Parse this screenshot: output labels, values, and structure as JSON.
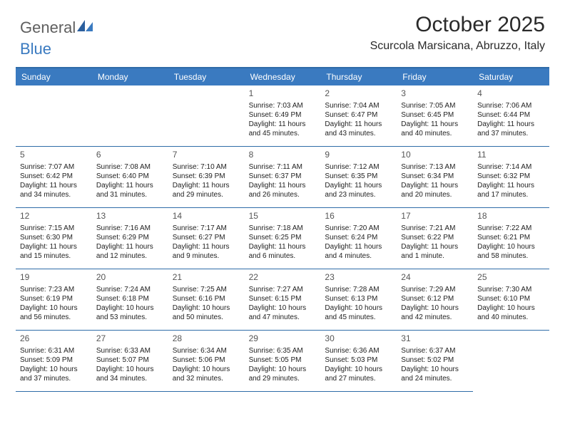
{
  "logo": {
    "text1": "General",
    "text2": "Blue"
  },
  "title": "October 2025",
  "location": "Scurcola Marsicana, Abruzzo, Italy",
  "colors": {
    "header_bg": "#3a7ac0",
    "header_text": "#ffffff",
    "border": "#2f6ca8",
    "logo_gray": "#5f5f5f",
    "logo_blue": "#3a7ac0",
    "body_text": "#222222",
    "daynum_text": "#555555",
    "page_bg": "#ffffff"
  },
  "typography": {
    "title_fontsize": 30,
    "location_fontsize": 16,
    "weekday_fontsize": 12,
    "daynum_fontsize": 12,
    "info_fontsize": 10,
    "font_family": "Arial"
  },
  "layout": {
    "columns": 7,
    "rows": 5,
    "cell_min_height": 86
  },
  "weekdays": [
    "Sunday",
    "Monday",
    "Tuesday",
    "Wednesday",
    "Thursday",
    "Friday",
    "Saturday"
  ],
  "leading_blanks": 3,
  "days": [
    {
      "n": "1",
      "sr": "Sunrise: 7:03 AM",
      "ss": "Sunset: 6:49 PM",
      "d1": "Daylight: 11 hours",
      "d2": "and 45 minutes."
    },
    {
      "n": "2",
      "sr": "Sunrise: 7:04 AM",
      "ss": "Sunset: 6:47 PM",
      "d1": "Daylight: 11 hours",
      "d2": "and 43 minutes."
    },
    {
      "n": "3",
      "sr": "Sunrise: 7:05 AM",
      "ss": "Sunset: 6:45 PM",
      "d1": "Daylight: 11 hours",
      "d2": "and 40 minutes."
    },
    {
      "n": "4",
      "sr": "Sunrise: 7:06 AM",
      "ss": "Sunset: 6:44 PM",
      "d1": "Daylight: 11 hours",
      "d2": "and 37 minutes."
    },
    {
      "n": "5",
      "sr": "Sunrise: 7:07 AM",
      "ss": "Sunset: 6:42 PM",
      "d1": "Daylight: 11 hours",
      "d2": "and 34 minutes."
    },
    {
      "n": "6",
      "sr": "Sunrise: 7:08 AM",
      "ss": "Sunset: 6:40 PM",
      "d1": "Daylight: 11 hours",
      "d2": "and 31 minutes."
    },
    {
      "n": "7",
      "sr": "Sunrise: 7:10 AM",
      "ss": "Sunset: 6:39 PM",
      "d1": "Daylight: 11 hours",
      "d2": "and 29 minutes."
    },
    {
      "n": "8",
      "sr": "Sunrise: 7:11 AM",
      "ss": "Sunset: 6:37 PM",
      "d1": "Daylight: 11 hours",
      "d2": "and 26 minutes."
    },
    {
      "n": "9",
      "sr": "Sunrise: 7:12 AM",
      "ss": "Sunset: 6:35 PM",
      "d1": "Daylight: 11 hours",
      "d2": "and 23 minutes."
    },
    {
      "n": "10",
      "sr": "Sunrise: 7:13 AM",
      "ss": "Sunset: 6:34 PM",
      "d1": "Daylight: 11 hours",
      "d2": "and 20 minutes."
    },
    {
      "n": "11",
      "sr": "Sunrise: 7:14 AM",
      "ss": "Sunset: 6:32 PM",
      "d1": "Daylight: 11 hours",
      "d2": "and 17 minutes."
    },
    {
      "n": "12",
      "sr": "Sunrise: 7:15 AM",
      "ss": "Sunset: 6:30 PM",
      "d1": "Daylight: 11 hours",
      "d2": "and 15 minutes."
    },
    {
      "n": "13",
      "sr": "Sunrise: 7:16 AM",
      "ss": "Sunset: 6:29 PM",
      "d1": "Daylight: 11 hours",
      "d2": "and 12 minutes."
    },
    {
      "n": "14",
      "sr": "Sunrise: 7:17 AM",
      "ss": "Sunset: 6:27 PM",
      "d1": "Daylight: 11 hours",
      "d2": "and 9 minutes."
    },
    {
      "n": "15",
      "sr": "Sunrise: 7:18 AM",
      "ss": "Sunset: 6:25 PM",
      "d1": "Daylight: 11 hours",
      "d2": "and 6 minutes."
    },
    {
      "n": "16",
      "sr": "Sunrise: 7:20 AM",
      "ss": "Sunset: 6:24 PM",
      "d1": "Daylight: 11 hours",
      "d2": "and 4 minutes."
    },
    {
      "n": "17",
      "sr": "Sunrise: 7:21 AM",
      "ss": "Sunset: 6:22 PM",
      "d1": "Daylight: 11 hours",
      "d2": "and 1 minute."
    },
    {
      "n": "18",
      "sr": "Sunrise: 7:22 AM",
      "ss": "Sunset: 6:21 PM",
      "d1": "Daylight: 10 hours",
      "d2": "and 58 minutes."
    },
    {
      "n": "19",
      "sr": "Sunrise: 7:23 AM",
      "ss": "Sunset: 6:19 PM",
      "d1": "Daylight: 10 hours",
      "d2": "and 56 minutes."
    },
    {
      "n": "20",
      "sr": "Sunrise: 7:24 AM",
      "ss": "Sunset: 6:18 PM",
      "d1": "Daylight: 10 hours",
      "d2": "and 53 minutes."
    },
    {
      "n": "21",
      "sr": "Sunrise: 7:25 AM",
      "ss": "Sunset: 6:16 PM",
      "d1": "Daylight: 10 hours",
      "d2": "and 50 minutes."
    },
    {
      "n": "22",
      "sr": "Sunrise: 7:27 AM",
      "ss": "Sunset: 6:15 PM",
      "d1": "Daylight: 10 hours",
      "d2": "and 47 minutes."
    },
    {
      "n": "23",
      "sr": "Sunrise: 7:28 AM",
      "ss": "Sunset: 6:13 PM",
      "d1": "Daylight: 10 hours",
      "d2": "and 45 minutes."
    },
    {
      "n": "24",
      "sr": "Sunrise: 7:29 AM",
      "ss": "Sunset: 6:12 PM",
      "d1": "Daylight: 10 hours",
      "d2": "and 42 minutes."
    },
    {
      "n": "25",
      "sr": "Sunrise: 7:30 AM",
      "ss": "Sunset: 6:10 PM",
      "d1": "Daylight: 10 hours",
      "d2": "and 40 minutes."
    },
    {
      "n": "26",
      "sr": "Sunrise: 6:31 AM",
      "ss": "Sunset: 5:09 PM",
      "d1": "Daylight: 10 hours",
      "d2": "and 37 minutes."
    },
    {
      "n": "27",
      "sr": "Sunrise: 6:33 AM",
      "ss": "Sunset: 5:07 PM",
      "d1": "Daylight: 10 hours",
      "d2": "and 34 minutes."
    },
    {
      "n": "28",
      "sr": "Sunrise: 6:34 AM",
      "ss": "Sunset: 5:06 PM",
      "d1": "Daylight: 10 hours",
      "d2": "and 32 minutes."
    },
    {
      "n": "29",
      "sr": "Sunrise: 6:35 AM",
      "ss": "Sunset: 5:05 PM",
      "d1": "Daylight: 10 hours",
      "d2": "and 29 minutes."
    },
    {
      "n": "30",
      "sr": "Sunrise: 6:36 AM",
      "ss": "Sunset: 5:03 PM",
      "d1": "Daylight: 10 hours",
      "d2": "and 27 minutes."
    },
    {
      "n": "31",
      "sr": "Sunrise: 6:37 AM",
      "ss": "Sunset: 5:02 PM",
      "d1": "Daylight: 10 hours",
      "d2": "and 24 minutes."
    }
  ]
}
